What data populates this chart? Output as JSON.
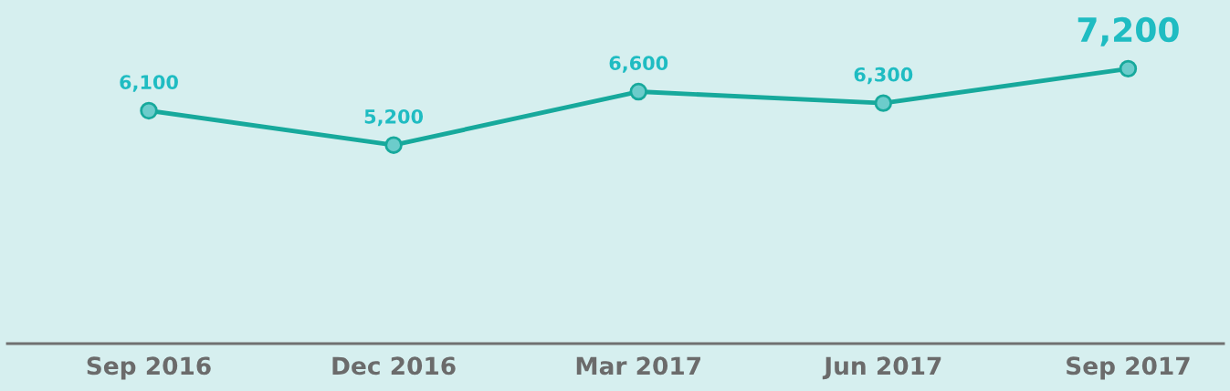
{
  "chart_data": {
    "type": "line",
    "categories": [
      "Sep 2016",
      "Dec 2016",
      "Mar 2017",
      "Jun 2017",
      "Sep 2017"
    ],
    "values": [
      6100,
      5200,
      6600,
      6300,
      7200
    ],
    "value_labels": [
      "6,100",
      "5,200",
      "6,600",
      "6,300",
      "7,200"
    ],
    "color": "#17a99c",
    "ylim": [
      0,
      9000
    ],
    "tick_labels": "x",
    "marker": "circle",
    "grid": false,
    "legend": false
  }
}
